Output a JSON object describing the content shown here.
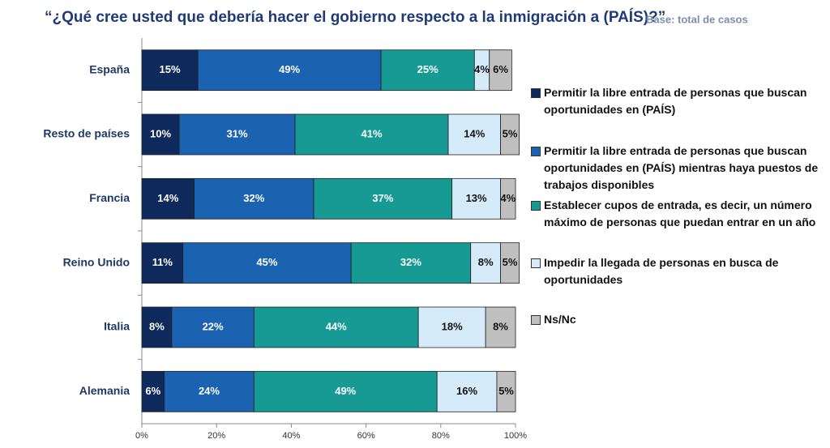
{
  "chart_data": {
    "type": "stacked-barh",
    "title": "“¿Qué cree usted que debería hacer el gobierno respecto a la inmigración a (PAÍS)?”",
    "subtitle": "Base: total de casos",
    "categories": [
      "España",
      "Resto de países",
      "Francia",
      "Reino Unido",
      "Italia",
      "Alemania"
    ],
    "series": [
      {
        "name": "Permitir la libre entrada de personas que buscan oportunidades en (PAÍS)",
        "color": "#0e2a5c",
        "values": [
          15,
          10,
          14,
          11,
          8,
          6
        ],
        "value_labels": [
          "15%",
          "10%",
          "14%",
          "11%",
          "8%",
          "6%"
        ]
      },
      {
        "name": "Permitir la libre entrada de personas que buscan oportunidades en (PAÍS) mientras haya puestos de trabajos disponibles",
        "color": "#1b62b0",
        "values": [
          49,
          31,
          32,
          45,
          22,
          24
        ],
        "value_labels": [
          "49%",
          "31%",
          "32%",
          "45%",
          "22%",
          "24%"
        ]
      },
      {
        "name": "Establecer cupos de entrada, es decir, un número máximo de personas que puedan entrar en un año",
        "color": "#169a93",
        "values": [
          25,
          41,
          37,
          32,
          44,
          49
        ],
        "value_labels": [
          "25%",
          "41%",
          "37%",
          "32%",
          "44%",
          "49%"
        ]
      },
      {
        "name": "Impedir la llegada de personas en busca de oportunidades",
        "color": "#d5ebfa",
        "values": [
          4,
          14,
          13,
          8,
          18,
          16
        ],
        "value_labels": [
          "4%",
          "14%",
          "13%",
          "8%",
          "18%",
          "16%"
        ]
      },
      {
        "name": "Ns/Nc",
        "color": "#bfbfbf",
        "values": [
          6,
          5,
          4,
          5,
          8,
          5
        ],
        "value_labels": [
          "6%",
          "5%",
          "4%",
          "5%",
          "8%",
          "5%"
        ]
      }
    ],
    "xlim": [
      0,
      100
    ],
    "xticks": [
      {
        "value": 0,
        "label": "0%"
      },
      {
        "value": 20,
        "label": "20%"
      },
      {
        "value": 40,
        "label": "40%"
      },
      {
        "value": 60,
        "label": "60%"
      },
      {
        "value": 80,
        "label": "80%"
      },
      {
        "value": 100,
        "label": "100%"
      }
    ]
  }
}
